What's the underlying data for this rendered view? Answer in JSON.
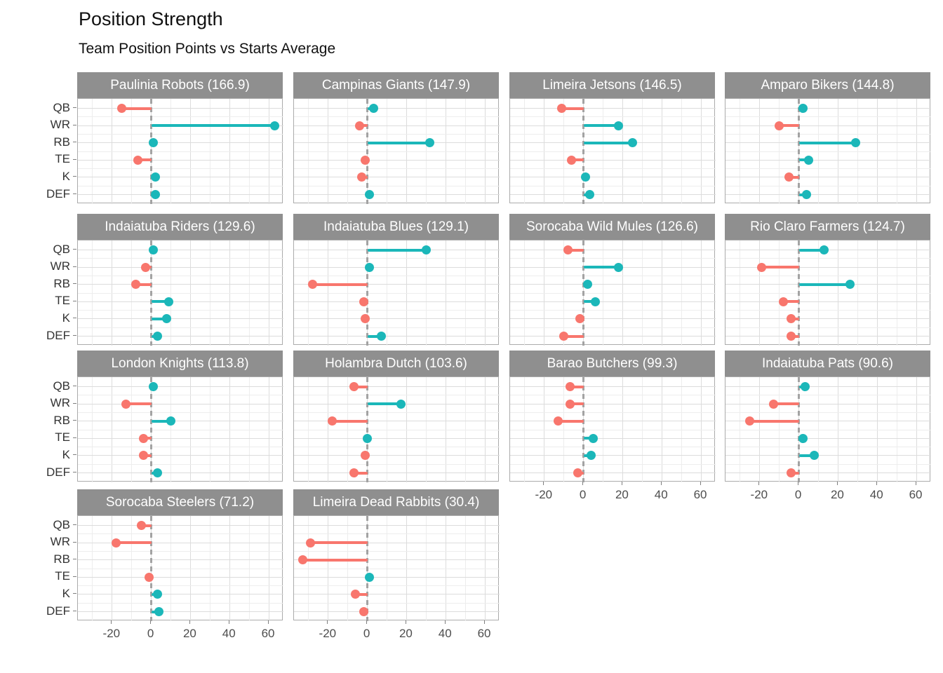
{
  "chart_data": {
    "type": "bar",
    "variant": "faceted-diverging-lollipop",
    "title": "Position Strength",
    "subtitle": "Team Position Points vs Starts Average",
    "categories": [
      "QB",
      "WR",
      "RB",
      "TE",
      "K",
      "DEF"
    ],
    "xticks": [
      -20,
      0,
      20,
      40,
      60
    ],
    "xlim": [
      -37.5,
      67.5
    ],
    "grid": "on",
    "legend_position": "none",
    "colors": {
      "positive": "#1bb7b9",
      "negative": "#f8766d",
      "strip_bg": "#8f8f8f",
      "strip_text": "#ffffff",
      "zero_line": "#a3a3a3",
      "grid_major": "#dcdcdc",
      "grid_minor": "#ededed",
      "panel_border": "#ababab"
    },
    "facets": [
      {
        "team": "Paulinia Robots",
        "score": 166.9,
        "label": "Paulinia Robots (166.9)",
        "values": [
          -15,
          63,
          1,
          -7,
          2,
          2
        ]
      },
      {
        "team": "Campinas Giants",
        "score": 147.9,
        "label": "Campinas Giants (147.9)",
        "values": [
          3,
          -4,
          32,
          -1,
          -3,
          1
        ]
      },
      {
        "team": "Limeira Jetsons",
        "score": 146.5,
        "label": "Limeira Jetsons (146.5)",
        "values": [
          -11,
          18,
          25,
          -6,
          1,
          3
        ]
      },
      {
        "team": "Amparo Bikers",
        "score": 144.8,
        "label": "Amparo Bikers (144.8)",
        "values": [
          2,
          -10,
          29,
          5,
          -5,
          4
        ]
      },
      {
        "team": "Indaiatuba Riders",
        "score": 129.6,
        "label": "Indaiatuba Riders (129.6)",
        "values": [
          1,
          -3,
          -8,
          9,
          8,
          3
        ]
      },
      {
        "team": "Indaiatuba Blues",
        "score": 129.1,
        "label": "Indaiatuba Blues (129.1)",
        "values": [
          30,
          1,
          -28,
          -2,
          -1,
          7
        ]
      },
      {
        "team": "Sorocaba Wild Mules",
        "score": 126.6,
        "label": "Sorocaba Wild Mules (126.6)",
        "values": [
          -8,
          18,
          2,
          6,
          -2,
          -10
        ]
      },
      {
        "team": "Rio Claro Farmers",
        "score": 124.7,
        "label": "Rio Claro Farmers (124.7)",
        "values": [
          13,
          -19,
          26,
          -8,
          -4,
          -4
        ]
      },
      {
        "team": "London Knights",
        "score": 113.8,
        "label": "London Knights (113.8)",
        "values": [
          1,
          -13,
          10,
          -4,
          -4,
          3
        ]
      },
      {
        "team": "Holambra Dutch",
        "score": 103.6,
        "label": "Holambra Dutch (103.6)",
        "values": [
          -7,
          17,
          -18,
          0,
          -1,
          -7
        ]
      },
      {
        "team": "Barao Butchers",
        "score": 99.3,
        "label": "Barao Butchers (99.3)",
        "values": [
          -7,
          -7,
          -13,
          5,
          4,
          -3
        ]
      },
      {
        "team": "Indaiatuba Pats",
        "score": 90.6,
        "label": "Indaiatuba Pats (90.6)",
        "values": [
          3,
          -13,
          -25,
          2,
          8,
          -4
        ]
      },
      {
        "team": "Sorocaba Steelers",
        "score": 71.2,
        "label": "Sorocaba Steelers (71.2)",
        "values": [
          -5,
          -18,
          null,
          -1,
          3,
          4
        ]
      },
      {
        "team": "Limeira Dead Rabbits",
        "score": 30.4,
        "label": "Limeira Dead Rabbits (30.4)",
        "values": [
          null,
          -29,
          -33,
          1,
          -6,
          -2
        ]
      }
    ]
  }
}
